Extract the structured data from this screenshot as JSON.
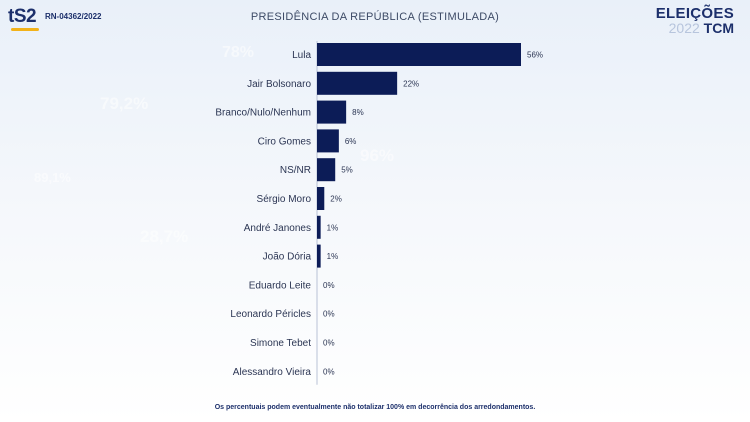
{
  "header": {
    "logo": "tS2",
    "registration": "RN-04362/2022",
    "title": "PRESIDÊNCIA DA REPÚBLICA (ESTIMULADA)",
    "brand_line1": "ELEIÇÕES",
    "brand_year": "2022",
    "brand_name": "TCM"
  },
  "background_numbers": [
    "78%",
    "79,2%",
    "89,1%",
    "96%",
    "28,7%"
  ],
  "chart_data": {
    "type": "bar",
    "orientation": "horizontal",
    "title": "PRESIDÊNCIA DA REPÚBLICA (ESTIMULADA)",
    "categories": [
      "Lula",
      "Jair Bolsonaro",
      "Branco/Nulo/Nenhum",
      "Ciro Gomes",
      "NS/NR",
      "Sérgio Moro",
      "André Janones",
      "João Dória",
      "Eduardo Leite",
      "Leonardo Péricles",
      "Simone Tebet",
      "Alessandro Vieira"
    ],
    "values": [
      56,
      22,
      8,
      6,
      5,
      2,
      1,
      1,
      0,
      0,
      0,
      0
    ],
    "value_labels": [
      "56%",
      "22%",
      "8%",
      "6%",
      "5%",
      "2%",
      "1%",
      "1%",
      "0%",
      "0%",
      "0%",
      "0%"
    ],
    "bar_color": "#0c1c57",
    "grid": false
  },
  "footnote": "Os percentuais podem eventualmente não totalizar 100% em decorrência dos arredondamentos."
}
